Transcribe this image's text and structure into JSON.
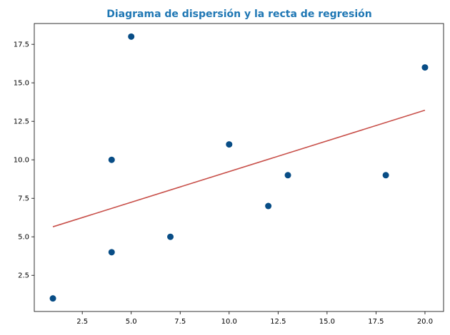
{
  "chart_data": {
    "type": "scatter",
    "title": "Diagrama de dispersión y la recta de regresión",
    "title_color": "#1f77b4",
    "xlabel": "",
    "ylabel": "",
    "xlim": [
      0.05,
      20.95
    ],
    "ylim": [
      0.15,
      18.85
    ],
    "x_ticks": [
      2.5,
      5.0,
      7.5,
      10.0,
      12.5,
      15.0,
      17.5,
      20.0
    ],
    "x_tick_labels": [
      "2.5",
      "5.0",
      "7.5",
      "10.0",
      "12.5",
      "15.0",
      "17.5",
      "20.0"
    ],
    "y_ticks": [
      2.5,
      5.0,
      7.5,
      10.0,
      12.5,
      15.0,
      17.5
    ],
    "y_tick_labels": [
      "2.5",
      "5.0",
      "7.5",
      "10.0",
      "12.5",
      "15.0",
      "17.5"
    ],
    "grid": false,
    "series": [
      {
        "kind": "scatter",
        "color": "#084d86",
        "points": [
          {
            "x": 1,
            "y": 1
          },
          {
            "x": 4,
            "y": 4
          },
          {
            "x": 4,
            "y": 10
          },
          {
            "x": 5,
            "y": 18
          },
          {
            "x": 7,
            "y": 5
          },
          {
            "x": 10,
            "y": 11
          },
          {
            "x": 12,
            "y": 7
          },
          {
            "x": 13,
            "y": 9
          },
          {
            "x": 18,
            "y": 9
          },
          {
            "x": 20,
            "y": 16
          }
        ]
      },
      {
        "kind": "line",
        "color": "#c8504a",
        "points": [
          {
            "x": 1,
            "y": 5.65
          },
          {
            "x": 20,
            "y": 13.22
          }
        ]
      }
    ]
  }
}
